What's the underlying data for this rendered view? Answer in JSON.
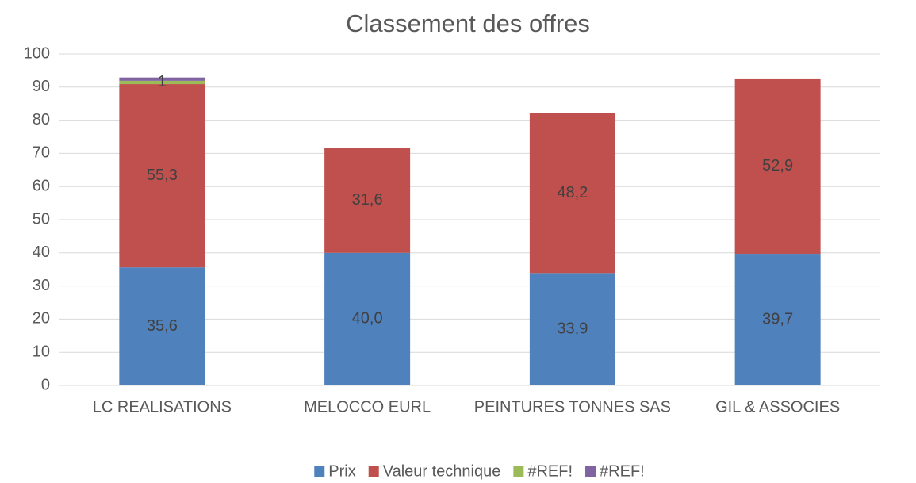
{
  "chart_data": {
    "type": "stacked_bar",
    "title": "Classement des offres",
    "categories": [
      "LC REALISATIONS",
      "MELOCCO EURL",
      "PEINTURES TONNES SAS",
      "GIL & ASSOCIES"
    ],
    "series": [
      {
        "name": "Prix",
        "color": "#4f81bd",
        "values": [
          35.6,
          40.0,
          33.9,
          39.7
        ],
        "value_labels": [
          "35,6",
          "40,0",
          "33,9",
          "39,7"
        ]
      },
      {
        "name": "Valeur technique",
        "color": "#c0504d",
        "values": [
          55.3,
          31.6,
          48.2,
          52.9
        ],
        "value_labels": [
          "55,3",
          "31,6",
          "48,2",
          "52,9"
        ]
      },
      {
        "name": "#REF!",
        "color": "#9bbb59",
        "values": [
          1,
          null,
          null,
          null
        ]
      },
      {
        "name": "#REF!",
        "color": "#8064a2",
        "values": [
          1,
          null,
          null,
          null
        ]
      }
    ],
    "ylim": [
      0,
      100
    ],
    "yticks": [
      0,
      10,
      20,
      30,
      40,
      50,
      60,
      70,
      80,
      90,
      100
    ],
    "grid": true,
    "legend": "bottom"
  }
}
